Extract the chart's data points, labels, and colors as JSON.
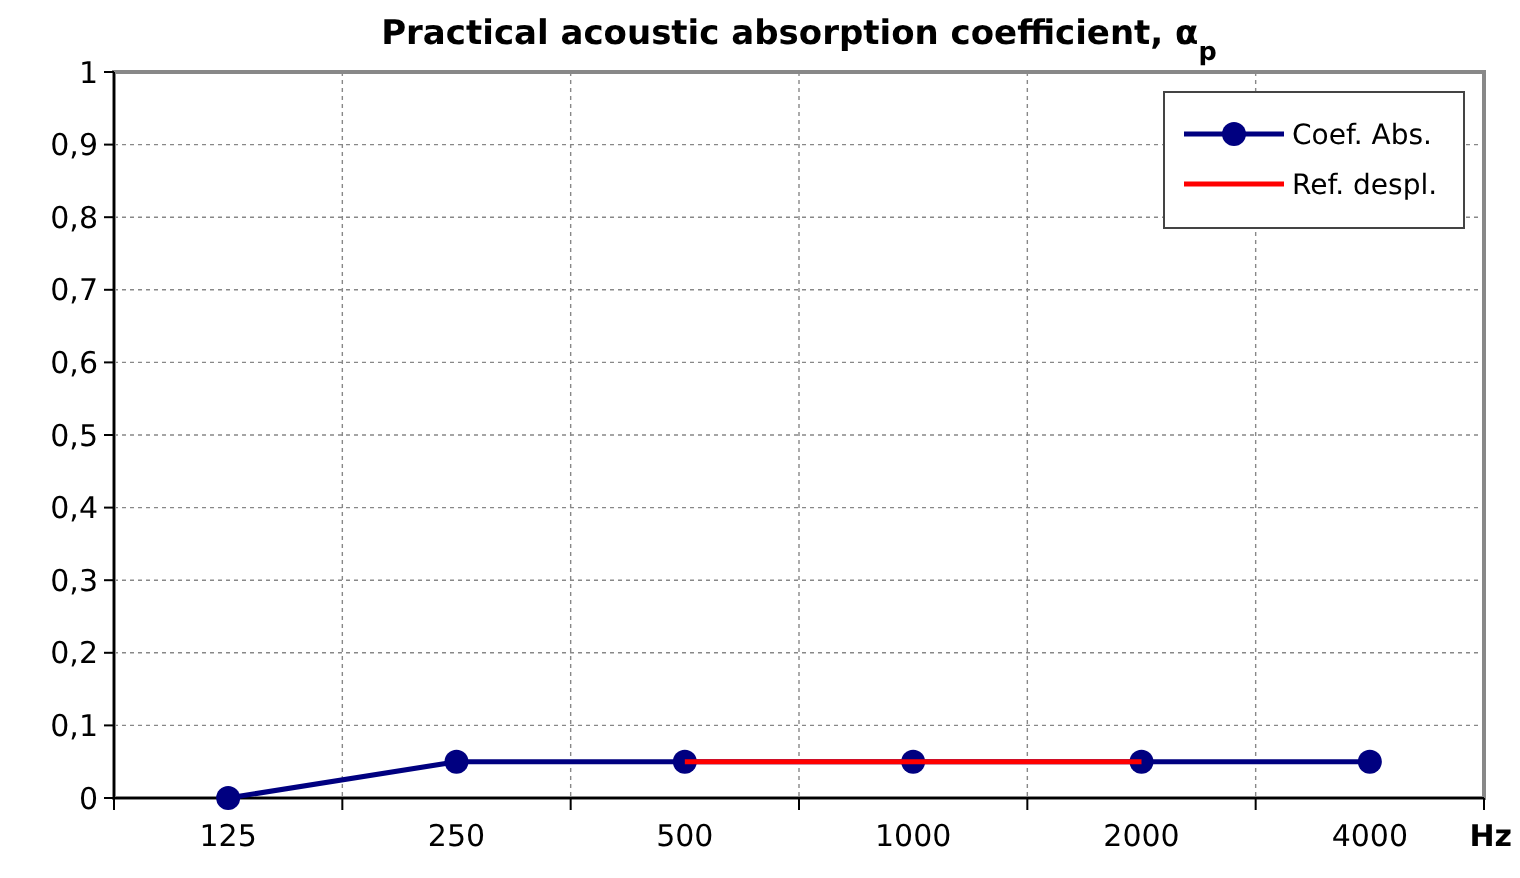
{
  "chart_data": {
    "type": "line",
    "title": "Practical acoustic absorption coefficient, α$_{p}$",
    "xlabel": "Hz",
    "categories": [
      "125",
      "250",
      "500",
      "1000",
      "2000",
      "4000"
    ],
    "series": [
      {
        "name": "Coef. Abs.",
        "color": "#000080",
        "values": [
          0,
          0.05,
          0.05,
          0.05,
          0.05,
          0.05
        ],
        "marker": "circle"
      },
      {
        "name": "Ref. despl.",
        "color": "#ff0000",
        "values": [
          null,
          null,
          0.05,
          0.05,
          0.05,
          null
        ],
        "marker": "none"
      }
    ],
    "ylim": [
      0,
      1
    ],
    "yticks": [
      0,
      {
        "value": 0.1,
        "label": "0,1"
      },
      {
        "value": 0.2,
        "label": "0,2"
      },
      {
        "value": 0.3,
        "label": "0,3"
      },
      {
        "value": 0.4,
        "label": "0,4"
      },
      {
        "value": 0.5,
        "label": "0,5"
      },
      {
        "value": 0.6,
        "label": "0,6"
      },
      {
        "value": 0.7,
        "label": "0,7"
      },
      {
        "value": 0.8,
        "label": "0,8"
      },
      {
        "value": 0.9,
        "label": "0,9"
      },
      1
    ],
    "grid": true,
    "legend": "top right"
  }
}
